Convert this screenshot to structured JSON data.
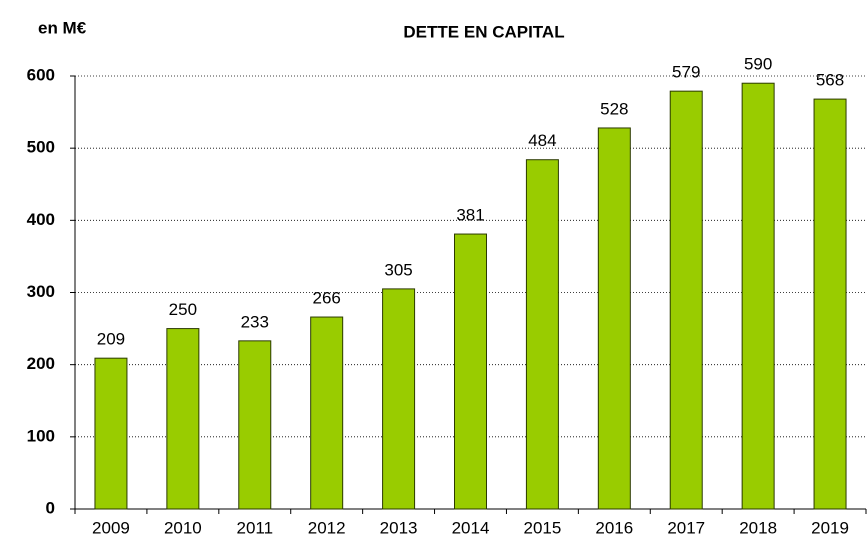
{
  "chart_data": {
    "type": "bar",
    "title": "DETTE EN CAPITAL",
    "y_label": "en M€",
    "categories": [
      "2009",
      "2010",
      "2011",
      "2012",
      "2013",
      "2014",
      "2015",
      "2016",
      "2017",
      "2018",
      "2019"
    ],
    "values": [
      209,
      250,
      233,
      266,
      305,
      381,
      484,
      528,
      579,
      590,
      568
    ],
    "color": "#99cc00",
    "ylim": [
      0,
      600
    ],
    "yticks": [
      0,
      100,
      200,
      300,
      400,
      500,
      600
    ],
    "grid": true
  }
}
